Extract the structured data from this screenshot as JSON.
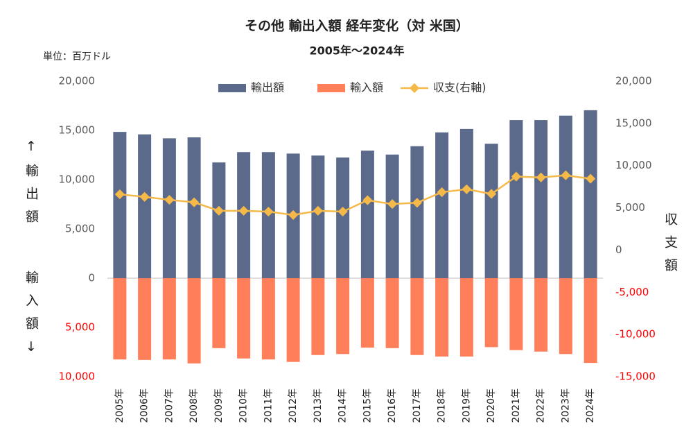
{
  "chart_data": {
    "type": "bar",
    "title": "その他 輸出入額 経年変化（対 米国）",
    "subtitle": "2005年～2024年",
    "unit_label": "単位：百万ドル",
    "y_label_top": "↑輸出額",
    "y_label_bottom": "輸入額↓",
    "y2_label": "収支額",
    "categories": [
      "2005年",
      "2006年",
      "2007年",
      "2008年",
      "2009年",
      "2010年",
      "2011年",
      "2012年",
      "2013年",
      "2014年",
      "2015年",
      "2016年",
      "2017年",
      "2018年",
      "2019年",
      "2020年",
      "2021年",
      "2022年",
      "2023年",
      "2024年"
    ],
    "series": [
      {
        "name": "輸出額",
        "type": "bar",
        "color": "#5b6a8a",
        "values": [
          14850,
          14600,
          14200,
          14300,
          11750,
          12800,
          12800,
          12650,
          12450,
          12250,
          12950,
          12550,
          13400,
          14800,
          15150,
          13650,
          16050,
          16050,
          16500,
          17050
        ]
      },
      {
        "name": "輸入額",
        "type": "bar",
        "color": "#ff7f5b",
        "values": [
          -8250,
          -8300,
          -8250,
          -8650,
          -7100,
          -8150,
          -8250,
          -8500,
          -7800,
          -7700,
          -7050,
          -7100,
          -7800,
          -7950,
          -7950,
          -7000,
          -7300,
          -7450,
          -7700,
          -8600
        ]
      },
      {
        "name": "収支(右軸)",
        "type": "line",
        "axis": "y2",
        "color": "#f5b94a",
        "values": [
          6600,
          6300,
          5950,
          5650,
          4650,
          4650,
          4550,
          4150,
          4650,
          4550,
          5900,
          5450,
          5600,
          6850,
          7200,
          6650,
          8700,
          8600,
          8850,
          8450
        ]
      }
    ],
    "ylim": [
      -10000,
      20000
    ],
    "yticks": [
      {
        "value": 20000,
        "label": "20,000"
      },
      {
        "value": 15000,
        "label": "15,000"
      },
      {
        "value": 10000,
        "label": "10,000"
      },
      {
        "value": 5000,
        "label": "5,000"
      },
      0,
      {
        "value": -5000,
        "label": "5,000"
      },
      {
        "value": -10000,
        "label": "10,000"
      }
    ],
    "y2lim": [
      -15000,
      20000
    ],
    "y2ticks": [
      {
        "value": 20000,
        "label": "20,000"
      },
      {
        "value": 15000,
        "label": "15,000"
      },
      {
        "value": 10000,
        "label": "10,000"
      },
      {
        "value": 5000,
        "label": "5,000"
      },
      0,
      {
        "value": -5000,
        "label": "-5,000"
      },
      {
        "value": -10000,
        "label": "-10,000"
      },
      {
        "value": -15000,
        "label": "-15,000"
      }
    ],
    "negative_tick_color": "#ff0000",
    "legend": "top"
  }
}
